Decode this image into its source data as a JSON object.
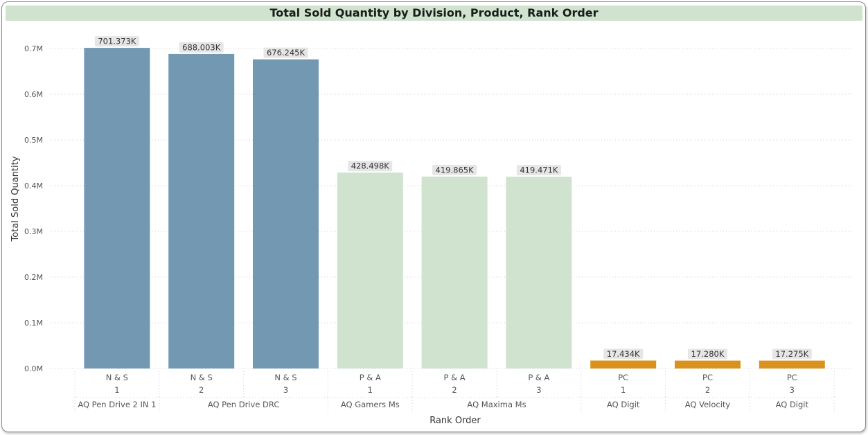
{
  "chart_data": {
    "type": "bar",
    "title": "Total Sold Quantity by Division, Product, Rank Order",
    "xlabel": "Rank Order",
    "ylabel": "Total Sold Quantity",
    "ylim": [
      0,
      0.7
    ],
    "yticks": [
      "0.0M",
      "0.1M",
      "0.2M",
      "0.3M",
      "0.4M",
      "0.5M",
      "0.6M",
      "0.7M"
    ],
    "grid": true,
    "bars": [
      {
        "division": "N & S",
        "rank": "1",
        "product": "AQ Pen Drive 2 IN 1",
        "value": 701.373,
        "label": "701.373K",
        "color": "#7399b2"
      },
      {
        "division": "N & S",
        "rank": "2",
        "product": "AQ Pen Drive DRC",
        "value": 688.003,
        "label": "688.003K",
        "color": "#7399b2"
      },
      {
        "division": "N & S",
        "rank": "3",
        "product": "AQ Pen Drive DRC",
        "value": 676.245,
        "label": "676.245K",
        "color": "#7399b2"
      },
      {
        "division": "P & A",
        "rank": "1",
        "product": "AQ Gamers Ms",
        "value": 428.498,
        "label": "428.498K",
        "color": "#cfe3cf"
      },
      {
        "division": "P & A",
        "rank": "2",
        "product": "AQ Maxima Ms",
        "value": 419.865,
        "label": "419.865K",
        "color": "#cfe3cf"
      },
      {
        "division": "P & A",
        "rank": "3",
        "product": "AQ Maxima Ms",
        "value": 419.471,
        "label": "419.471K",
        "color": "#cfe3cf"
      },
      {
        "division": "PC",
        "rank": "1",
        "product": "AQ Digit",
        "value": 17.434,
        "label": "17.434K",
        "color": "#d9921e"
      },
      {
        "division": "PC",
        "rank": "2",
        "product": "AQ Velocity",
        "value": 17.28,
        "label": "17.280K",
        "color": "#d9921e"
      },
      {
        "division": "PC",
        "rank": "3",
        "product": "AQ Digit",
        "value": 17.275,
        "label": "17.275K",
        "color": "#d9921e"
      }
    ],
    "product_groups": [
      {
        "label": "AQ Pen Drive 2 IN 1",
        "span": 1
      },
      {
        "label": "AQ Pen Drive DRC",
        "span": 2
      },
      {
        "label": "AQ Gamers Ms",
        "span": 1
      },
      {
        "label": "AQ Maxima Ms",
        "span": 2
      },
      {
        "label": "AQ Digit",
        "span": 1
      },
      {
        "label": "AQ Velocity",
        "span": 1
      },
      {
        "label": "AQ Digit",
        "span": 1
      }
    ]
  }
}
